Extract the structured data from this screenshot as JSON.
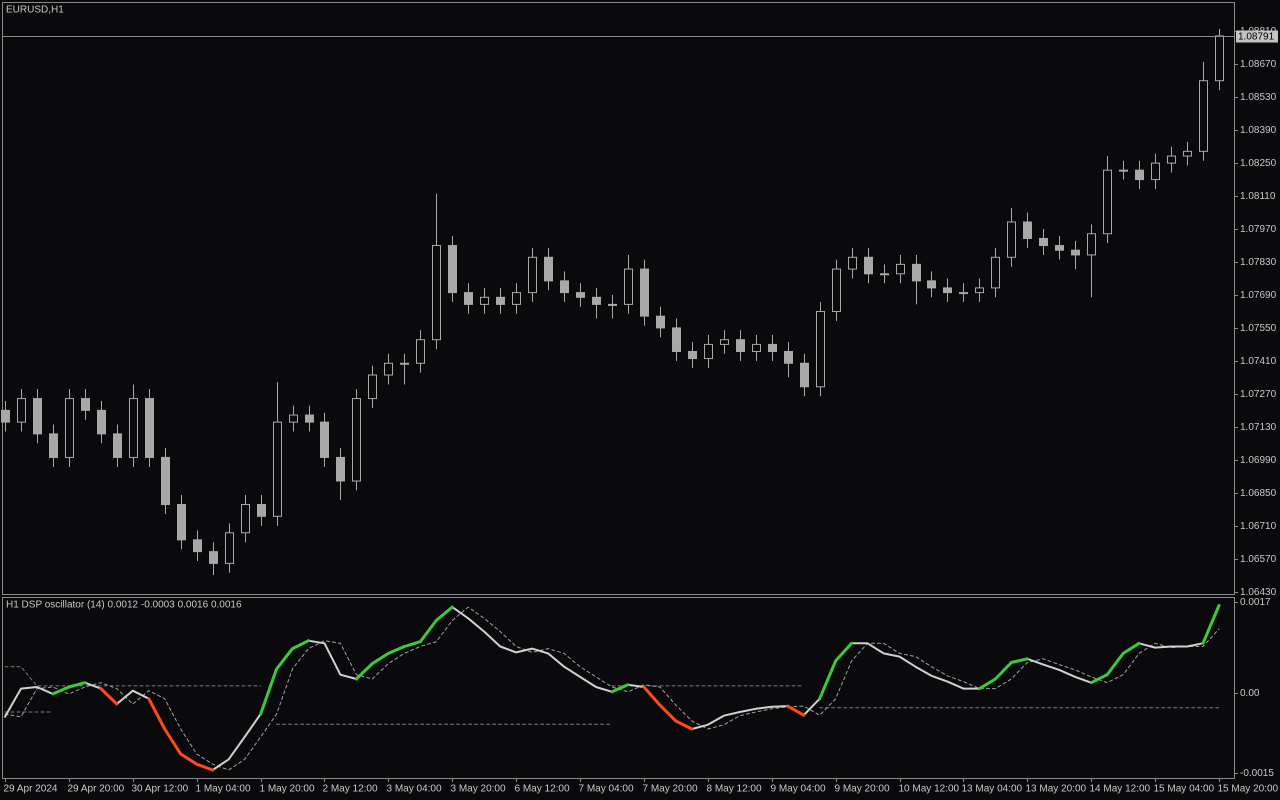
{
  "chart_data": [
    {
      "type": "candlestick",
      "title": "EURUSD,H1",
      "color": "#a8a8a8",
      "xlim": [
        0,
        76
      ],
      "ylim": [
        1.0642,
        1.0893
      ],
      "yticks": [
        {
          "value": 1.0643,
          "label": "1.06430"
        },
        {
          "value": 1.0657,
          "label": "1.06570"
        },
        {
          "value": 1.0671,
          "label": "1.06710"
        },
        {
          "value": 1.0685,
          "label": "1.06850"
        },
        {
          "value": 1.0699,
          "label": "1.06990"
        },
        {
          "value": 1.0713,
          "label": "1.07130"
        },
        {
          "value": 1.0727,
          "label": "1.07270"
        },
        {
          "value": 1.0741,
          "label": "1.07410"
        },
        {
          "value": 1.0755,
          "label": "1.07550"
        },
        {
          "value": 1.0769,
          "label": "1.07690"
        },
        {
          "value": 1.0783,
          "label": "1.07830"
        },
        {
          "value": 1.0797,
          "label": "1.07970"
        },
        {
          "value": 1.0811,
          "label": "1.08110"
        },
        {
          "value": 1.0825,
          "label": "1.08250"
        },
        {
          "value": 1.0839,
          "label": "1.08390"
        },
        {
          "value": 1.0853,
          "label": "1.08530"
        },
        {
          "value": 1.0867,
          "label": "1.08670"
        },
        {
          "value": 1.0881,
          "label": "1.08810"
        }
      ],
      "current_price": 1.08791,
      "open": [
        1.072,
        1.0715,
        1.0725,
        1.071,
        1.07,
        1.0725,
        1.072,
        1.071,
        1.07,
        1.0725,
        1.07,
        1.068,
        1.0665,
        1.066,
        1.0655,
        1.0668,
        1.068,
        1.0675,
        1.0715,
        1.0718,
        1.0715,
        1.07,
        1.069,
        1.0725,
        1.0735,
        1.074,
        1.074,
        1.075,
        1.079,
        1.077,
        1.0765,
        1.0768,
        1.0765,
        1.077,
        1.0785,
        1.0775,
        1.077,
        1.0768,
        1.0765,
        1.0765,
        1.078,
        1.076,
        1.0755,
        1.0745,
        1.0742,
        1.0748,
        1.075,
        1.0745,
        1.0748,
        1.0745,
        1.074,
        1.073,
        1.0762,
        1.078,
        1.0785,
        1.0778,
        1.0778,
        1.0782,
        1.0775,
        1.0772,
        1.077,
        1.077,
        1.0772,
        1.0785,
        1.08,
        1.0793,
        1.079,
        1.0788,
        1.0786,
        1.0795,
        1.0822,
        1.0822,
        1.0818,
        1.0825,
        1.0828,
        1.083,
        1.086
      ],
      "high": [
        1.0724,
        1.0729,
        1.0729,
        1.0714,
        1.0729,
        1.0729,
        1.0724,
        1.0714,
        1.0731,
        1.0729,
        1.0704,
        1.0684,
        1.0669,
        1.0664,
        1.0672,
        1.0684,
        1.0684,
        1.0732,
        1.0722,
        1.0722,
        1.0719,
        1.0704,
        1.0729,
        1.0739,
        1.0744,
        1.0744,
        1.0754,
        1.0812,
        1.0794,
        1.0774,
        1.0772,
        1.0772,
        1.0774,
        1.0789,
        1.0789,
        1.0779,
        1.0774,
        1.0772,
        1.0769,
        1.0786,
        1.0784,
        1.0764,
        1.0759,
        1.0749,
        1.0752,
        1.0754,
        1.0754,
        1.0752,
        1.0752,
        1.0749,
        1.0744,
        1.0766,
        1.0784,
        1.0789,
        1.0789,
        1.0782,
        1.0786,
        1.0786,
        1.0779,
        1.0776,
        1.0774,
        1.0776,
        1.0789,
        1.0806,
        1.0804,
        1.0797,
        1.0794,
        1.0792,
        1.0799,
        1.0828,
        1.0826,
        1.0826,
        1.0829,
        1.0832,
        1.0834,
        1.0868,
        1.0882
      ],
      "low": [
        1.0711,
        1.0711,
        1.0706,
        1.0696,
        1.0696,
        1.0716,
        1.0706,
        1.0696,
        1.0696,
        1.0696,
        1.0676,
        1.0661,
        1.0656,
        1.065,
        1.0651,
        1.0664,
        1.0671,
        1.0671,
        1.0711,
        1.0711,
        1.0696,
        1.0682,
        1.0686,
        1.0721,
        1.0731,
        1.0731,
        1.0736,
        1.0746,
        1.0766,
        1.0761,
        1.0761,
        1.0761,
        1.0761,
        1.0766,
        1.0771,
        1.0766,
        1.0764,
        1.0759,
        1.0759,
        1.0761,
        1.0756,
        1.0751,
        1.0741,
        1.0738,
        1.0738,
        1.0744,
        1.0741,
        1.0741,
        1.0741,
        1.0734,
        1.0726,
        1.0726,
        1.0758,
        1.0776,
        1.0774,
        1.0774,
        1.0774,
        1.0765,
        1.0768,
        1.0766,
        1.0766,
        1.0766,
        1.0768,
        1.0781,
        1.0789,
        1.0786,
        1.0784,
        1.078,
        1.0768,
        1.0791,
        1.0818,
        1.0814,
        1.0814,
        1.0821,
        1.0824,
        1.0826,
        1.0856
      ],
      "close": [
        1.0715,
        1.0725,
        1.071,
        1.07,
        1.0725,
        1.072,
        1.071,
        1.07,
        1.0725,
        1.07,
        1.068,
        1.0665,
        1.066,
        1.0655,
        1.0668,
        1.068,
        1.0675,
        1.0715,
        1.0718,
        1.0715,
        1.07,
        1.069,
        1.0725,
        1.0735,
        1.074,
        1.074,
        1.075,
        1.079,
        1.077,
        1.0765,
        1.0768,
        1.0765,
        1.077,
        1.0785,
        1.0775,
        1.077,
        1.0768,
        1.0765,
        1.0765,
        1.078,
        1.076,
        1.0755,
        1.0745,
        1.0742,
        1.0748,
        1.075,
        1.0745,
        1.0748,
        1.0745,
        1.074,
        1.073,
        1.0762,
        1.078,
        1.0785,
        1.0778,
        1.0778,
        1.0782,
        1.0775,
        1.0772,
        1.077,
        1.077,
        1.0772,
        1.0785,
        1.08,
        1.0793,
        1.079,
        1.0788,
        1.0786,
        1.0795,
        1.0822,
        1.0822,
        1.0818,
        1.0825,
        1.0828,
        1.083,
        1.086,
        1.0879
      ]
    },
    {
      "type": "line",
      "title": "H1 DSP oscillator (14) 0.0012 -0.0003 0.0016 0.0016",
      "xlim": [
        0,
        76
      ],
      "ylim": [
        -0.0016,
        0.0018
      ],
      "yticks": [
        0.0017,
        {
          "value": 0,
          "label": "0.00"
        },
        -0.0015
      ],
      "xticks": [
        {
          "value": 0,
          "label": "29 Apr 2024"
        },
        {
          "value": 4,
          "label": "29 Apr 20:00"
        },
        {
          "value": 8,
          "label": "30 Apr 12:00"
        },
        {
          "value": 12,
          "label": "1 May 04:00"
        },
        {
          "value": 16,
          "label": "1 May 20:00"
        },
        {
          "value": 20,
          "label": "2 May 12:00"
        },
        {
          "value": 24,
          "label": "3 May 04:00"
        },
        {
          "value": 28,
          "label": "3 May 20:00"
        },
        {
          "value": 32,
          "label": "6 May 12:00"
        },
        {
          "value": 36,
          "label": "7 May 04:00"
        },
        {
          "value": 40,
          "label": "7 May 20:00"
        },
        {
          "value": 44,
          "label": "8 May 12:00"
        },
        {
          "value": 48,
          "label": "9 May 04:00"
        },
        {
          "value": 52,
          "label": "9 May 20:00"
        },
        {
          "value": 56,
          "label": "10 May 12:00"
        },
        {
          "value": 60,
          "label": "13 May 04:00"
        },
        {
          "value": 64,
          "label": "13 May 20:00"
        },
        {
          "value": 68,
          "label": "14 May 12:00"
        },
        {
          "value": 72,
          "label": "15 May 04:00"
        },
        {
          "value": 76,
          "label": "15 May 20:00"
        }
      ],
      "series": [
        {
          "color": "#7a7a7a",
          "dashed": true,
          "width": 1,
          "values": [
            0.00049,
            0.00049,
            0.00013,
            0.00013,
            0.00013,
            0.00013,
            0.00013,
            0.00013,
            0.00013,
            0.00013,
            0.00013,
            0.00013,
            0.00013,
            0.00013,
            0.00013,
            0.00013,
            0.00013,
            null,
            null,
            null,
            null,
            null,
            null,
            null,
            null,
            null,
            null,
            null,
            null,
            null,
            null,
            null,
            null,
            null,
            null,
            null,
            null,
            null,
            0.00013,
            0.00013,
            0.00013,
            0.00013,
            0.00013,
            0.00013,
            0.00013,
            0.00013,
            0.00013,
            0.00013,
            0.00013,
            0.00013,
            0.00013,
            null,
            null,
            null,
            null,
            null,
            null,
            null,
            null,
            null,
            null,
            null,
            null,
            null,
            null,
            null,
            null,
            null,
            null,
            null,
            null,
            null,
            null,
            null,
            null,
            null,
            null
          ]
        },
        {
          "color": "#7a7a7a",
          "dashed": true,
          "width": 1,
          "values": [
            -0.00036,
            -0.00036,
            -0.00036,
            -0.00036,
            null,
            null,
            null,
            null,
            null,
            null,
            null,
            null,
            null,
            null,
            null,
            null,
            null,
            -0.00059,
            -0.00059,
            -0.00059,
            -0.00059,
            -0.00059,
            -0.00059,
            -0.00059,
            -0.00059,
            -0.00059,
            -0.00059,
            -0.00059,
            -0.00059,
            -0.00059,
            -0.00059,
            -0.00059,
            -0.00059,
            -0.00059,
            -0.00059,
            -0.00059,
            -0.00059,
            -0.00059,
            -0.00059,
            null,
            null,
            null,
            null,
            null,
            null,
            null,
            null,
            null,
            null,
            null,
            null,
            -0.00028,
            -0.00028,
            -0.00028,
            -0.00028,
            -0.00028,
            -0.00028,
            -0.00028,
            -0.00028,
            -0.00028,
            -0.00028,
            -0.00028,
            -0.00028,
            -0.00028,
            -0.00028,
            -0.00028,
            -0.00028,
            -0.00028,
            -0.00028,
            -0.00028,
            -0.00028,
            -0.00028,
            -0.00028,
            -0.00028,
            -0.00028,
            -0.00028,
            -0.00028
          ]
        },
        {
          "color": "#a0a0a0",
          "dashed": true,
          "width": 1,
          "values": [
            -0.0004,
            -0.00045,
            8e-05,
            0.00011,
            -2e-05,
            0.00011,
            0.00019,
            8e-05,
            -0.00021,
            4e-05,
            -0.00011,
            -0.00068,
            -0.00115,
            -0.00134,
            -0.00145,
            -0.00125,
            -0.00083,
            -0.0004,
            0.00045,
            0.00083,
            0.00098,
            0.00093,
            0.00034,
            0.00026,
            0.00055,
            0.00074,
            0.00087,
            0.00096,
            0.00136,
            0.00161,
            0.0014,
            0.00115,
            0.00087,
            0.00076,
            0.00083,
            0.00074,
            0.00049,
            0.0003,
            0.00011,
            2e-05,
            0.00015,
            0.00011,
            -0.00023,
            -0.00053,
            -0.00068,
            -0.0006,
            -0.00043,
            -0.00036,
            -0.0003,
            -0.00026,
            -0.00025,
            -0.00042,
            -0.00011,
            0.0006,
            0.00093,
            0.00093,
            0.00074,
            0.00068,
            0.00049,
            0.00032,
            0.00021,
            8e-05,
            8e-05,
            0.00026,
            0.00057,
            0.00064,
            0.00053,
            0.00043,
            0.0003,
            0.00019,
            0.00034,
            0.00074,
            0.00093,
            0.00085,
            0.00087,
            0.00087,
            0.0012
          ]
        },
        {
          "color": "#d0d0d0",
          "dashed": false,
          "width": 2,
          "values": [
            -0.00045,
            8e-05,
            0.00011,
            -2e-05,
            0.00011,
            0.00019,
            8e-05,
            -0.00021,
            4e-05,
            -0.00011,
            -0.00068,
            -0.00115,
            -0.00134,
            -0.00145,
            -0.00125,
            -0.00083,
            -0.0004,
            0.00045,
            0.00083,
            0.00098,
            0.00093,
            0.00034,
            0.00026,
            0.00055,
            0.00074,
            0.00087,
            0.00096,
            0.00136,
            0.00161,
            0.0014,
            0.00115,
            0.00087,
            0.00076,
            0.00083,
            0.00074,
            0.00049,
            0.0003,
            0.00011,
            2e-05,
            0.00015,
            0.00011,
            -0.00023,
            -0.00053,
            -0.00068,
            -0.0006,
            -0.00043,
            -0.00036,
            -0.0003,
            -0.00026,
            -0.00025,
            -0.00042,
            -0.00011,
            0.0006,
            0.00093,
            0.00093,
            0.00074,
            0.00068,
            0.00049,
            0.00032,
            0.00021,
            8e-05,
            8e-05,
            0.00026,
            0.00057,
            0.00064,
            0.00053,
            0.00043,
            0.0003,
            0.00019,
            0.00034,
            0.00074,
            0.00093,
            0.00085,
            0.00087,
            0.00087,
            0.00093,
            0.00164
          ]
        },
        {
          "color": "#3dc83d",
          "dashed": false,
          "width": 3,
          "values": [
            null,
            null,
            null,
            -2e-05,
            0.00011,
            0.00019,
            null,
            null,
            null,
            null,
            null,
            null,
            null,
            null,
            null,
            null,
            -0.0004,
            0.00045,
            0.00083,
            0.00098,
            null,
            null,
            0.00026,
            0.00055,
            0.00074,
            0.00087,
            0.00096,
            0.00136,
            0.00161,
            null,
            null,
            null,
            null,
            null,
            null,
            null,
            null,
            null,
            2e-05,
            0.00015,
            null,
            null,
            null,
            null,
            null,
            null,
            null,
            null,
            null,
            null,
            null,
            -0.00011,
            0.0006,
            0.00093,
            null,
            null,
            null,
            null,
            null,
            null,
            null,
            8e-05,
            0.00026,
            0.00057,
            0.00064,
            null,
            null,
            null,
            0.00019,
            0.00034,
            0.00074,
            0.00093,
            null,
            null,
            null,
            0.00093,
            0.00164
          ]
        },
        {
          "color": "#ff4a1a",
          "dashed": false,
          "width": 3,
          "values": [
            null,
            null,
            null,
            null,
            null,
            null,
            8e-05,
            -0.00021,
            null,
            -0.00011,
            -0.00068,
            -0.00115,
            -0.00134,
            -0.00145,
            null,
            null,
            null,
            null,
            null,
            null,
            null,
            null,
            null,
            null,
            null,
            null,
            null,
            null,
            null,
            null,
            null,
            null,
            null,
            null,
            null,
            null,
            null,
            null,
            null,
            null,
            0.00011,
            -0.00023,
            -0.00053,
            -0.00068,
            null,
            null,
            null,
            null,
            null,
            -0.00025,
            -0.00042,
            null,
            null,
            null,
            null,
            null,
            null,
            null,
            null,
            null,
            null,
            null,
            null,
            null,
            null,
            null,
            null,
            null,
            null,
            null,
            null,
            null,
            null,
            null,
            null,
            null,
            null
          ]
        }
      ]
    }
  ]
}
